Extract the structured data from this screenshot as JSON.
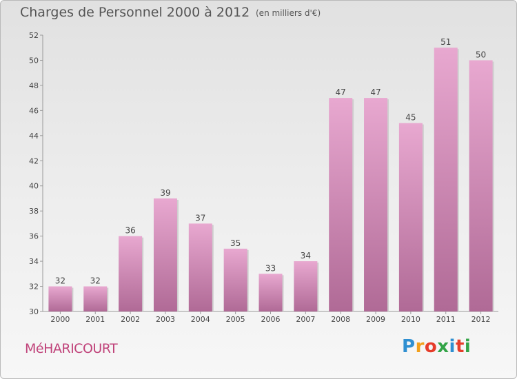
{
  "header": {
    "title": "Charges de Personnel 2000 à 2012",
    "subtitle": "(en milliers d'€)"
  },
  "footer": {
    "commune": "MéHARICOURT",
    "brand": "Proxiti"
  },
  "colors": {
    "bar_top": "#e8a8d0",
    "bar_bottom": "#b06a96",
    "title_text": "#555555",
    "commune_text": "#c0437a"
  },
  "chart_data": {
    "type": "bar",
    "title": "Charges de Personnel 2000 à 2012",
    "subtitle": "(en milliers d'€)",
    "xlabel": "",
    "ylabel": "",
    "categories": [
      "2000",
      "2001",
      "2002",
      "2003",
      "2004",
      "2005",
      "2006",
      "2007",
      "2008",
      "2009",
      "2010",
      "2011",
      "2012"
    ],
    "values": [
      32,
      32,
      36,
      39,
      37,
      35,
      33,
      34,
      47,
      47,
      45,
      51,
      50
    ],
    "ylim": [
      30,
      52
    ],
    "yticks": [
      30,
      32,
      34,
      36,
      38,
      40,
      42,
      44,
      46,
      48,
      50,
      52
    ],
    "grid": false,
    "legend": "none",
    "data_labels": true
  }
}
